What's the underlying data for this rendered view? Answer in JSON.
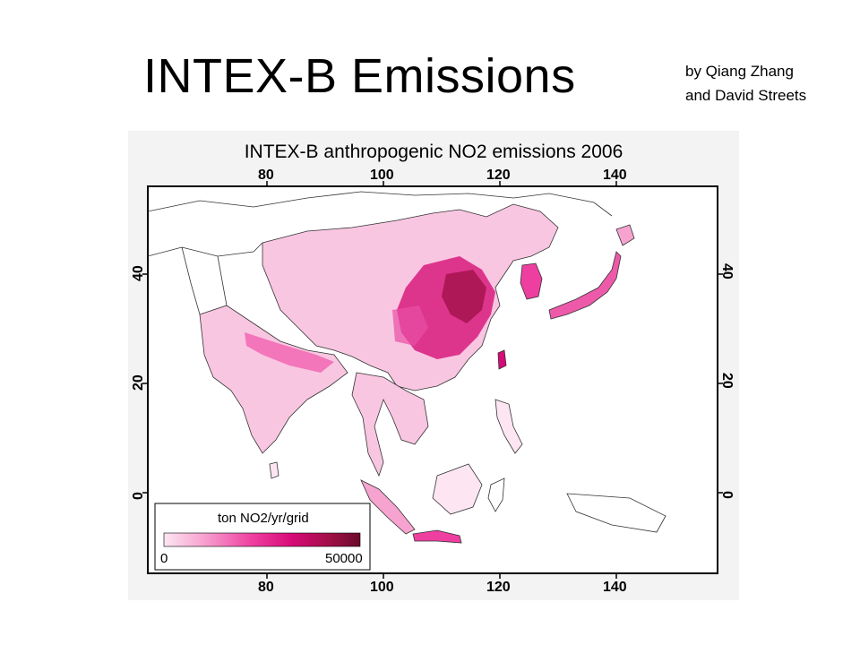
{
  "slide": {
    "title": "INTEX-B Emissions",
    "byline_line1": "by Qiang Zhang",
    "byline_line2": "and David Streets"
  },
  "map": {
    "title": "INTEX-B anthropogenic NO2 emissions 2006",
    "lon_ticks": [
      "80",
      "100",
      "120",
      "140"
    ],
    "lat_ticks": [
      "40",
      "20",
      "0"
    ],
    "colorbar": {
      "label": "ton NO2/yr/grid",
      "min_label": "0",
      "max_label": "50000",
      "min_value": 0,
      "max_value": 50000,
      "colors": [
        "#fde6f2",
        "#f7a3d0",
        "#ee3fa0",
        "#d80a78",
        "#9e0f45",
        "#6a0a2b"
      ]
    }
  }
}
